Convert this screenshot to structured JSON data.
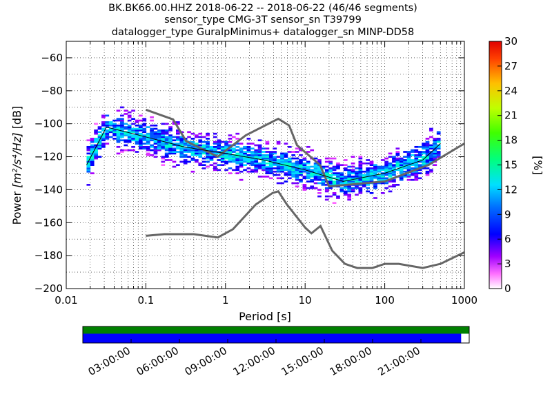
{
  "chart_data": {
    "type": "heatmap",
    "title_lines": [
      "BK.BK66.00.HHZ   2018-06-22 -- 2018-06-22  (46/46 segments)",
      "sensor_type CMG-3T sensor_sn T39799",
      "datalogger_type GuralpMinimus+ datalogger_sn MINP-DD58"
    ],
    "xlabel": "Period [s]",
    "ylabel_prefix": "Power ",
    "ylabel_units": "[m²/s⁴/Hz]",
    "ylabel_suffix": " [dB]",
    "xscale": "log",
    "xlim": [
      0.01,
      1000
    ],
    "ylim": [
      -200,
      -50
    ],
    "x_ticks": [
      {
        "v": 0.01,
        "label": "0.01"
      },
      {
        "v": 0.1,
        "label": "0.1"
      },
      {
        "v": 1,
        "label": "1"
      },
      {
        "v": 10,
        "label": "10"
      },
      {
        "v": 100,
        "label": "100"
      },
      {
        "v": 1000,
        "label": "1000"
      }
    ],
    "y_ticks": [
      {
        "v": -60,
        "label": "−60"
      },
      {
        "v": -80,
        "label": "−80"
      },
      {
        "v": -100,
        "label": "−100"
      },
      {
        "v": -120,
        "label": "−120"
      },
      {
        "v": -140,
        "label": "−140"
      },
      {
        "v": -160,
        "label": "−160"
      },
      {
        "v": -180,
        "label": "−180"
      },
      {
        "v": -200,
        "label": "−200"
      }
    ],
    "grid": true,
    "colorbar": {
      "label": "[%]",
      "range": [
        0,
        30
      ],
      "ticks": [
        "0",
        "3",
        "6",
        "9",
        "12",
        "15",
        "18",
        "21",
        "24",
        "27",
        "30"
      ]
    },
    "noise_models": [
      {
        "name": "NHNM",
        "points": [
          [
            0.1,
            -91.5
          ],
          [
            0.22,
            -97.4
          ],
          [
            0.32,
            -110.5
          ],
          [
            0.8,
            -120
          ],
          [
            1.8,
            -107
          ],
          [
            3.8,
            -99
          ],
          [
            4.6,
            -97
          ],
          [
            6.3,
            -101
          ],
          [
            7.9,
            -113
          ],
          [
            15.4,
            -125
          ],
          [
            20,
            -138
          ],
          [
            100,
            -135
          ],
          [
            354,
            -125
          ],
          [
            1000,
            -112
          ]
        ]
      },
      {
        "name": "NLNM",
        "points": [
          [
            0.1,
            -168
          ],
          [
            0.17,
            -167
          ],
          [
            0.4,
            -167
          ],
          [
            0.8,
            -169
          ],
          [
            1.24,
            -164
          ],
          [
            2.4,
            -149
          ],
          [
            3.9,
            -142
          ],
          [
            4.6,
            -141
          ],
          [
            5.9,
            -149
          ],
          [
            10,
            -163
          ],
          [
            12,
            -166.5
          ],
          [
            15.6,
            -162
          ],
          [
            21.9,
            -177
          ],
          [
            31.6,
            -185
          ],
          [
            45,
            -187.5
          ],
          [
            70,
            -187.5
          ],
          [
            100,
            -185
          ],
          [
            150,
            -185
          ],
          [
            300,
            -187.5
          ],
          [
            500,
            -185
          ],
          [
            1000,
            -178
          ]
        ]
      }
    ],
    "median_curve": [
      [
        0.018,
        -125
      ],
      [
        0.032,
        -102
      ],
      [
        0.1,
        -108
      ],
      [
        0.3,
        -114
      ],
      [
        1,
        -118
      ],
      [
        3,
        -122
      ],
      [
        10,
        -128
      ],
      [
        30,
        -135
      ],
      [
        100,
        -130
      ],
      [
        300,
        -122
      ],
      [
        500,
        -112
      ]
    ],
    "density_spread_db": 9,
    "timeline": {
      "tick_labels": [
        "03:00:00",
        "06:00:00",
        "09:00:00",
        "12:00:00",
        "15:00:00",
        "18:00:00",
        "21:00:00"
      ],
      "tick_hours": [
        3,
        6,
        9,
        12,
        15,
        18,
        21
      ],
      "hours_range": [
        0,
        24
      ],
      "data_coverage_end_hour": 23.5,
      "top_color": "#008000",
      "bottom_color": "#0000ff"
    },
    "curve_color": "#666666",
    "median_color": "#000000"
  }
}
